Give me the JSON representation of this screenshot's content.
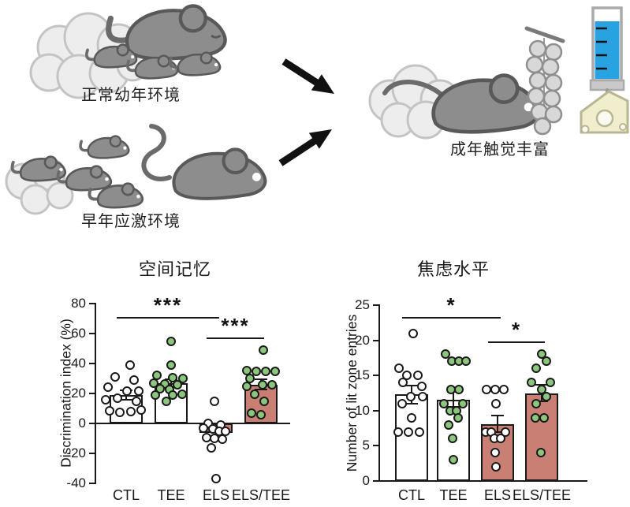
{
  "figure": {
    "labels": {
      "normal_env": "正常幼年环境",
      "stress_env": "早年应激环境",
      "adult_enrichment": "成年触觉丰富"
    },
    "colors": {
      "bar_white": "#ffffff",
      "bar_salmon": "#c97f74",
      "dot_green": "#8cc67d",
      "dot_white": "#ffffff",
      "outline": "#1a1a1a",
      "bottle_blue": "#29a2e2",
      "cheese_yellow": "#f1eecd",
      "mouse_gray": "#8d8d8d",
      "cloud_gray": "#ededed"
    }
  },
  "chart_data": [
    {
      "type": "bar",
      "title": "空间记忆",
      "ylabel": "Discrimination index (%)",
      "ylim": [
        -40,
        80
      ],
      "yticks": [
        80,
        60,
        40,
        20,
        0,
        -20,
        -40
      ],
      "categories": [
        "CTL",
        "TEE",
        "ELS",
        "ELS/TEE"
      ],
      "series": [
        {
          "name": "CTL",
          "mean": 19,
          "sem": 3,
          "bar_color": "#ffffff",
          "dot_color": "#ffffff",
          "points": [
            [
              5,
              39
            ],
            [
              -14,
              31
            ],
            [
              10,
              29
            ],
            [
              -23,
              24
            ],
            [
              1,
              21.5
            ],
            [
              16,
              21.5
            ],
            [
              -11,
              17
            ],
            [
              -26,
              16
            ],
            [
              13,
              15
            ],
            [
              -21,
              8.5
            ],
            [
              -8,
              7.5
            ],
            [
              6,
              8
            ],
            [
              19,
              9
            ]
          ]
        },
        {
          "name": "TEE",
          "mean": 27,
          "sem": 2.5,
          "bar_color": "#ffffff",
          "dot_color": "#8cc67d",
          "points": [
            [
              0,
              55
            ],
            [
              0,
              39
            ],
            [
              -18,
              32
            ],
            [
              2,
              30.5
            ],
            [
              15,
              30
            ],
            [
              -22,
              27
            ],
            [
              -8,
              26.5
            ],
            [
              8,
              26
            ],
            [
              -14,
              23
            ],
            [
              -2,
              22.5
            ],
            [
              -20,
              19
            ],
            [
              2,
              19
            ],
            [
              14,
              19.5
            ],
            [
              -6,
              15
            ]
          ]
        },
        {
          "name": "ELS",
          "mean": -6.5,
          "sem": 3.5,
          "bar_color": "#c97f74",
          "dot_color": "#ffffff",
          "points": [
            [
              -2,
              15
            ],
            [
              -10,
              0
            ],
            [
              6,
              -1
            ],
            [
              -16,
              -3
            ],
            [
              -4,
              -3.5
            ],
            [
              4,
              -5
            ],
            [
              12,
              -5.5
            ],
            [
              -12,
              -9.5
            ],
            [
              -2,
              -10
            ],
            [
              8,
              -10.5
            ],
            [
              -6,
              -16.5
            ],
            [
              0,
              -37
            ]
          ]
        },
        {
          "name": "ELS/TEE",
          "mean": 26,
          "sem": 3.5,
          "bar_color": "#c97f74",
          "dot_color": "#8cc67d",
          "points": [
            [
              3,
              49
            ],
            [
              -18,
              35.5
            ],
            [
              -6,
              35
            ],
            [
              6,
              35
            ],
            [
              18,
              34.5
            ],
            [
              -14,
              30
            ],
            [
              2,
              26
            ],
            [
              14,
              26
            ],
            [
              -18,
              25
            ],
            [
              -8,
              19.5
            ],
            [
              4,
              15
            ],
            [
              -12,
              7
            ],
            [
              0,
              6
            ]
          ]
        }
      ],
      "significance": [
        {
          "from": 0,
          "to": 2,
          "label": "***",
          "y": 70.5
        },
        {
          "from": 2,
          "to": 3,
          "label": "***",
          "y": 57
        }
      ]
    },
    {
      "type": "bar",
      "title": "焦虑水平",
      "ylabel": "Number of lit zone entries",
      "ylim": [
        0,
        25
      ],
      "yticks": [
        25,
        20,
        15,
        10,
        5,
        0
      ],
      "categories": [
        "CTL",
        "TEE",
        "ELS",
        "ELS/TEE"
      ],
      "series": [
        {
          "name": "CTL",
          "mean": 12.3,
          "sem": 1.3,
          "bar_color": "#ffffff",
          "dot_color": "#ffffff",
          "points": [
            [
              2,
              21
            ],
            [
              -16,
              16
            ],
            [
              -6,
              15
            ],
            [
              8,
              15
            ],
            [
              -11,
              14
            ],
            [
              13,
              13.5
            ],
            [
              14,
              12
            ],
            [
              -1,
              12
            ],
            [
              -12,
              11
            ],
            [
              0,
              9
            ],
            [
              -17,
              7
            ],
            [
              -4,
              7
            ],
            [
              10,
              7
            ]
          ]
        },
        {
          "name": "TEE",
          "mean": 11.6,
          "sem": 1.1,
          "bar_color": "#ffffff",
          "dot_color": "#8cc67d",
          "points": [
            [
              -10,
              18
            ],
            [
              -2,
              17
            ],
            [
              7,
              17
            ],
            [
              16,
              17
            ],
            [
              -3,
              13
            ],
            [
              7,
              13
            ],
            [
              -12,
              11
            ],
            [
              12,
              11
            ],
            [
              -4,
              10
            ],
            [
              4,
              10
            ],
            [
              6,
              9
            ],
            [
              -6,
              8
            ],
            [
              -1,
              6
            ],
            [
              0,
              3
            ]
          ]
        },
        {
          "name": "ELS",
          "mean": 8.1,
          "sem": 1.2,
          "bar_color": "#c97f74",
          "dot_color": "#ffffff",
          "points": [
            [
              -14,
              13
            ],
            [
              -3,
              13
            ],
            [
              8,
              13
            ],
            [
              -2,
              11
            ],
            [
              -15,
              7
            ],
            [
              -8,
              7
            ],
            [
              10,
              7
            ],
            [
              -4,
              6
            ],
            [
              4,
              6
            ],
            [
              -3,
              4
            ],
            [
              -2,
              2
            ]
          ]
        },
        {
          "name": "ELS/TEE",
          "mean": 12.5,
          "sem": 1.2,
          "bar_color": "#c97f74",
          "dot_color": "#8cc67d",
          "points": [
            [
              0,
              18
            ],
            [
              6,
              17
            ],
            [
              -7,
              16
            ],
            [
              -13,
              14
            ],
            [
              11,
              14
            ],
            [
              0,
              13
            ],
            [
              6,
              12
            ],
            [
              -7,
              11
            ],
            [
              -8,
              9
            ],
            [
              3,
              9
            ],
            [
              -1,
              4
            ]
          ]
        }
      ],
      "significance": [
        {
          "from": 0,
          "to": 2,
          "label": "*",
          "y": 23.2
        },
        {
          "from": 2,
          "to": 3,
          "label": "*",
          "y": 19.7
        }
      ]
    }
  ]
}
